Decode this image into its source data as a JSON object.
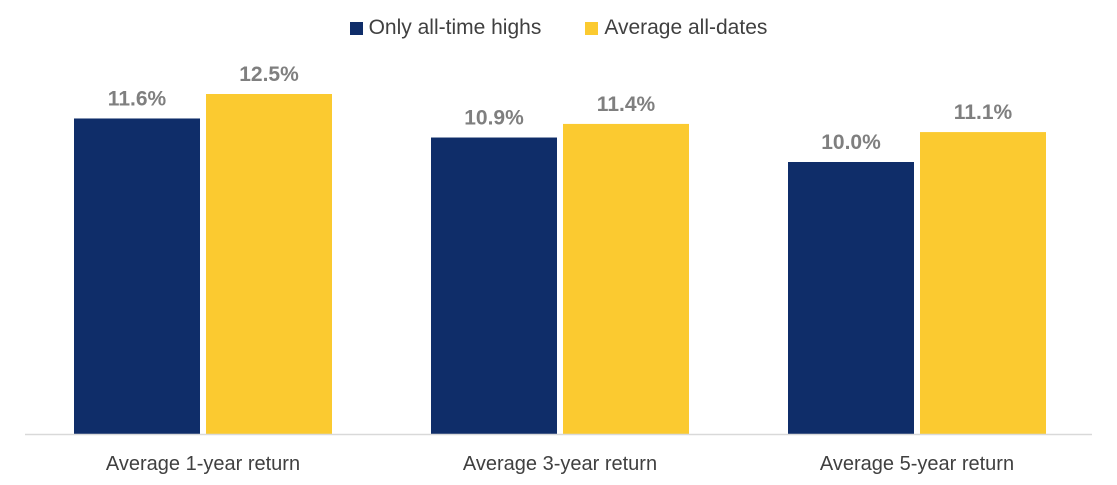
{
  "chart_data": {
    "type": "bar",
    "categories": [
      "Average 1-year return",
      "Average 3-year return",
      "Average 5-year return"
    ],
    "series": [
      {
        "name": "Only all-time highs",
        "values": [
          11.6,
          10.9,
          10.0
        ],
        "labels": [
          "11.6%",
          "10.9%",
          "10.0%"
        ],
        "color": "#0f2d69"
      },
      {
        "name": "Average all-dates",
        "values": [
          12.5,
          11.4,
          11.1
        ],
        "labels": [
          "12.5%",
          "11.4%",
          "11.1%"
        ],
        "color": "#fbca30"
      }
    ],
    "title": "",
    "xlabel": "",
    "ylabel": "",
    "ylim": [
      0,
      12.5
    ],
    "grid": false,
    "legend": "top-center",
    "axis_color": "#d9d9d9"
  }
}
